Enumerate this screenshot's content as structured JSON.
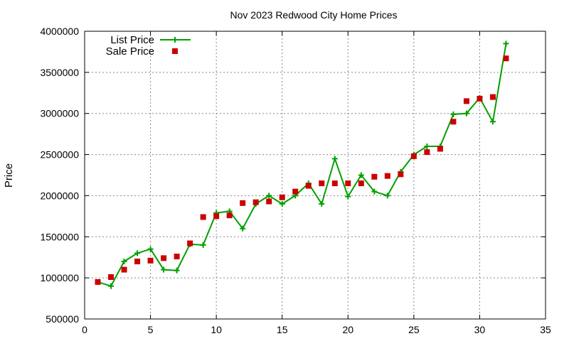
{
  "chart_data": {
    "type": "line",
    "title": "Nov 2023 Redwood City Home Prices",
    "xlabel": "",
    "ylabel": "Price",
    "xlim": [
      0,
      35
    ],
    "ylim": [
      500000,
      4000000
    ],
    "x_ticks": [
      "0",
      "5",
      "10",
      "15",
      "20",
      "25",
      "30",
      "35"
    ],
    "y_ticks": [
      "500000",
      "1000000",
      "1500000",
      "2000000",
      "2500000",
      "3000000",
      "3500000",
      "4000000"
    ],
    "grid": true,
    "legend_position": "top-left",
    "series": [
      {
        "name": "List Price",
        "style": "line-with-plus-markers",
        "color": "#00a000",
        "points": [
          [
            1,
            950000
          ],
          [
            2,
            900000
          ],
          [
            3,
            1200000
          ],
          [
            4,
            1300000
          ],
          [
            5,
            1350000
          ],
          [
            6,
            1100000
          ],
          [
            7,
            1090000
          ],
          [
            8,
            1410000
          ],
          [
            9,
            1400000
          ],
          [
            10,
            1790000
          ],
          [
            11,
            1810000
          ],
          [
            12,
            1600000
          ],
          [
            13,
            1900000
          ],
          [
            14,
            2000000
          ],
          [
            15,
            1900000
          ],
          [
            16,
            2000000
          ],
          [
            17,
            2150000
          ],
          [
            18,
            1900000
          ],
          [
            19,
            2450000
          ],
          [
            20,
            1990000
          ],
          [
            21,
            2250000
          ],
          [
            22,
            2050000
          ],
          [
            23,
            2000000
          ],
          [
            24,
            2290000
          ],
          [
            25,
            2500000
          ],
          [
            26,
            2600000
          ],
          [
            27,
            2600000
          ],
          [
            28,
            2990000
          ],
          [
            29,
            3000000
          ],
          [
            30,
            3190000
          ],
          [
            31,
            2900000
          ],
          [
            32,
            3850000
          ]
        ]
      },
      {
        "name": "Sale Price",
        "style": "square-markers",
        "color": "#cc0000",
        "points": [
          [
            1,
            950000
          ],
          [
            2,
            1010000
          ],
          [
            3,
            1100000
          ],
          [
            4,
            1200000
          ],
          [
            5,
            1210000
          ],
          [
            6,
            1240000
          ],
          [
            7,
            1260000
          ],
          [
            8,
            1420000
          ],
          [
            9,
            1740000
          ],
          [
            10,
            1750000
          ],
          [
            11,
            1760000
          ],
          [
            12,
            1910000
          ],
          [
            13,
            1920000
          ],
          [
            14,
            1930000
          ],
          [
            15,
            1980000
          ],
          [
            16,
            2050000
          ],
          [
            17,
            2120000
          ],
          [
            18,
            2150000
          ],
          [
            19,
            2150000
          ],
          [
            20,
            2150000
          ],
          [
            21,
            2150000
          ],
          [
            22,
            2230000
          ],
          [
            23,
            2240000
          ],
          [
            24,
            2260000
          ],
          [
            25,
            2480000
          ],
          [
            26,
            2530000
          ],
          [
            27,
            2570000
          ],
          [
            28,
            2900000
          ],
          [
            29,
            3150000
          ],
          [
            30,
            3180000
          ],
          [
            31,
            3200000
          ],
          [
            32,
            3670000
          ]
        ]
      }
    ]
  }
}
